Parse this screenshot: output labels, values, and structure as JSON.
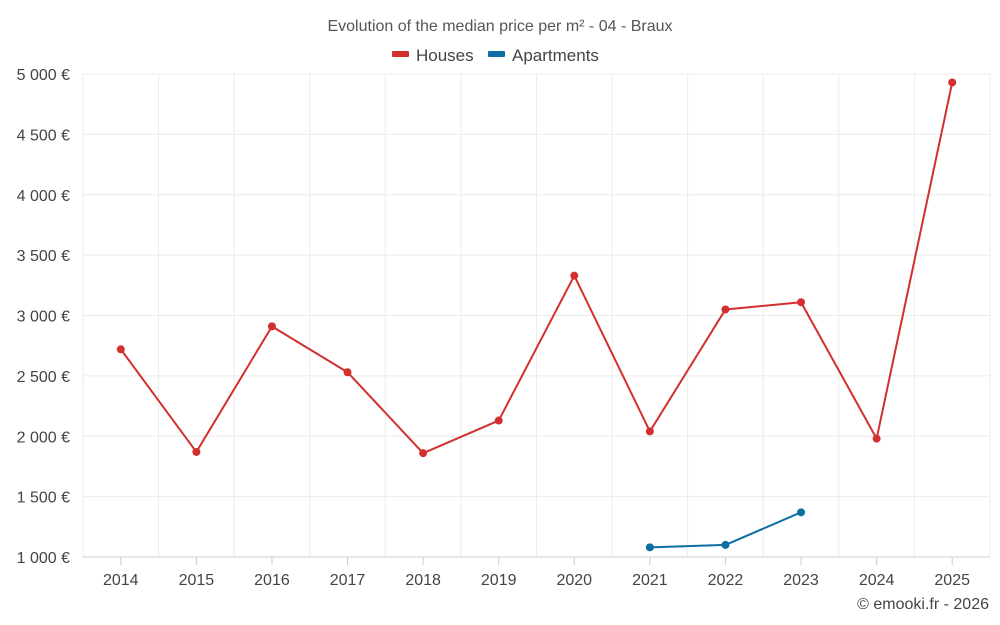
{
  "chart_data": {
    "type": "line",
    "title": "Evolution of the median price per m² - 04 - Braux",
    "categories": [
      "2014",
      "2015",
      "2016",
      "2017",
      "2018",
      "2019",
      "2020",
      "2021",
      "2022",
      "2023",
      "2024",
      "2025"
    ],
    "ylim": [
      1000,
      5000
    ],
    "yticks": [
      1000,
      1500,
      2000,
      2500,
      3000,
      3500,
      4000,
      4500,
      5000
    ],
    "ytick_labels": [
      "1 000 €",
      "1 500 €",
      "2 000 €",
      "2 500 €",
      "3 000 €",
      "3 500 €",
      "4 000 €",
      "4 500 €",
      "5 000 €"
    ],
    "grid": true,
    "legend_position": "top-center",
    "series": [
      {
        "name": "Houses",
        "color": "#d32f2f",
        "values": [
          2720,
          1870,
          2910,
          2530,
          1860,
          2130,
          3330,
          2040,
          3050,
          3110,
          1980,
          4930
        ]
      },
      {
        "name": "Apartments",
        "color": "#0e6ea3",
        "values": [
          null,
          null,
          null,
          null,
          null,
          null,
          null,
          1080,
          1100,
          1370,
          null,
          null
        ]
      }
    ]
  },
  "credit": "© emooki.fr - 2026"
}
